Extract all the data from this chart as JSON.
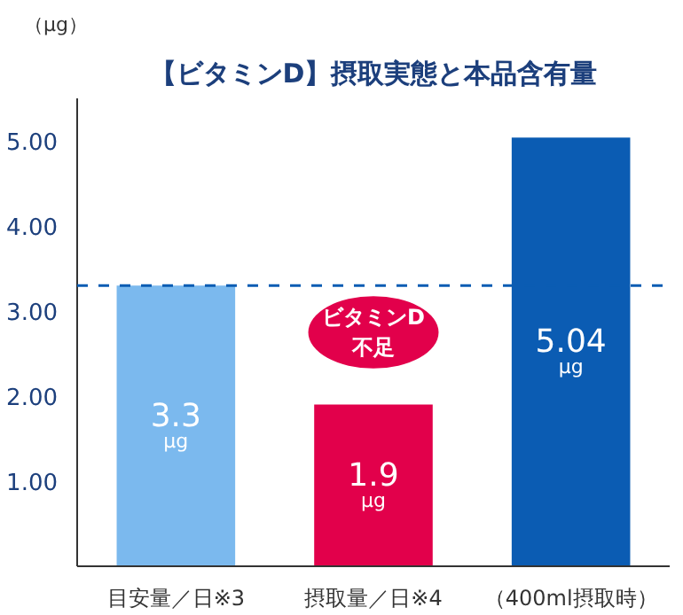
{
  "chart_data": {
    "type": "bar",
    "title": "【ビタミンD】摂取実態と本品含有量",
    "ylabel": "（μg）",
    "categories": [
      "目安量／日※3",
      "摂取量／日※4",
      "（400ml摂取時）"
    ],
    "values": [
      3.3,
      1.9,
      5.04
    ],
    "colors": [
      "#7bb9ee",
      "#e2004b",
      "#0b5cb3"
    ],
    "value_labels": [
      "3.3 μg",
      "1.9 μg",
      "5.04 μg"
    ],
    "ylim": [
      0,
      5.5
    ],
    "yticks": [
      {
        "value": 1,
        "label": "1.00"
      },
      {
        "value": 2,
        "label": "2.00"
      },
      {
        "value": 3,
        "label": "3.00"
      },
      {
        "value": 4,
        "label": "4.00"
      },
      {
        "value": 5,
        "label": "5.00"
      }
    ],
    "ref_lines": [
      {
        "axis": "y",
        "value": 3.3,
        "color": "#0b5cb3",
        "line_style": "dashed"
      }
    ],
    "annotations": [
      "ビタミンD\n不足"
    ],
    "grid": false
  }
}
